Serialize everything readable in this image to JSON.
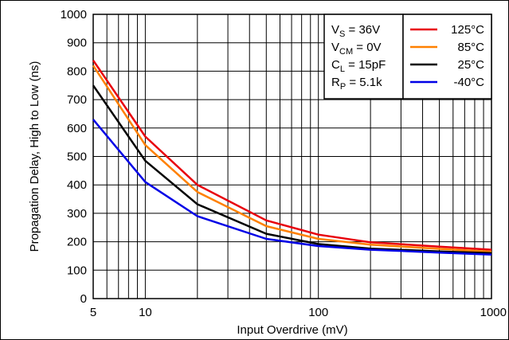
{
  "chart_data": {
    "type": "line",
    "xlabel": "Input Overdrive (mV)",
    "ylabel": "Propagation Delay, High to Low (ns)",
    "xscale": "log",
    "xlim": [
      5,
      1000
    ],
    "ylim": [
      0,
      1000
    ],
    "grid": true,
    "x_tick_labels": [
      "5",
      "10",
      "100",
      "1000"
    ],
    "y_tick_labels": [
      "0",
      "100",
      "200",
      "300",
      "400",
      "500",
      "600",
      "700",
      "800",
      "900",
      "1000"
    ],
    "conditions": [
      {
        "main": "V",
        "sub": "S",
        "rest": " = 36V"
      },
      {
        "main": "V",
        "sub": "CM",
        "rest": " = 0V"
      },
      {
        "main": "C",
        "sub": "L",
        "rest": " = 15pF"
      },
      {
        "main": "R",
        "sub": "P",
        "rest": " = 5.1k"
      }
    ],
    "legend_position": "top-right",
    "series": [
      {
        "name": "125°C",
        "color": "#e8000b",
        "x": [
          5,
          10,
          20,
          50,
          100,
          200,
          500,
          1000
        ],
        "y": [
          838,
          570,
          400,
          275,
          225,
          198,
          183,
          172
        ]
      },
      {
        "name": "85°C",
        "color": "#ff8000",
        "x": [
          5,
          10,
          20,
          50,
          100,
          200,
          500,
          1000
        ],
        "y": [
          820,
          540,
          375,
          255,
          210,
          190,
          175,
          165
        ]
      },
      {
        "name": "25°C",
        "color": "#000000",
        "x": [
          5,
          10,
          20,
          50,
          100,
          200,
          500,
          1000
        ],
        "y": [
          750,
          485,
          332,
          228,
          192,
          176,
          166,
          160
        ]
      },
      {
        "name": "-40°C",
        "color": "#0000e6",
        "x": [
          5,
          10,
          20,
          50,
          100,
          200,
          500,
          1000
        ],
        "y": [
          630,
          410,
          290,
          210,
          185,
          172,
          162,
          155
        ]
      }
    ]
  }
}
